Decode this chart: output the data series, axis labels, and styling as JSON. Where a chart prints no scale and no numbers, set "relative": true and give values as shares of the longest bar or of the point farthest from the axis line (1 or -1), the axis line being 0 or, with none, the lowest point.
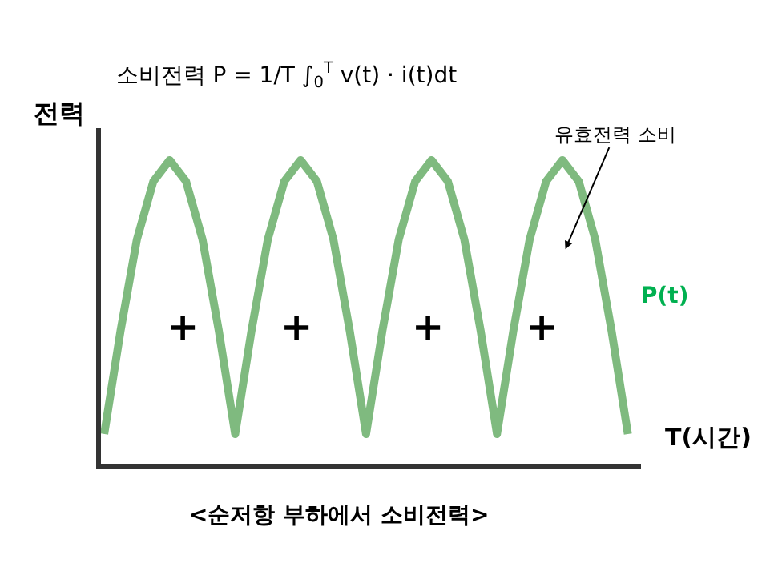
{
  "chart_data": {
    "type": "line",
    "relative": true,
    "title": "소비전력 P = 1/T ∫$_{0}$$^{T}$ v(t) · i(t)dt",
    "xlabel": "T(시간)",
    "ylabel": "전력",
    "categories": [
      null,
      null,
      null,
      null,
      null,
      null,
      null,
      null,
      null,
      null,
      null,
      null,
      null,
      null,
      null,
      null,
      null,
      null,
      null,
      null,
      null,
      null,
      null,
      null,
      null,
      null,
      null,
      null,
      null,
      null,
      null,
      null,
      null
    ],
    "series": [
      {
        "name": "P(t)",
        "color": "#7fba7f",
        "values": [
          0.1,
          0.44,
          0.74,
          0.93,
          1,
          0.93,
          0.74,
          0.44,
          0.1,
          0.44,
          0.74,
          0.93,
          1,
          0.93,
          0.74,
          0.44,
          0.1,
          0.44,
          0.74,
          0.93,
          1,
          0.93,
          0.74,
          0.44,
          0.1,
          0.44,
          0.74,
          0.93,
          1,
          0.93,
          0.74,
          0.44,
          0.1
        ]
      }
    ],
    "annotations": [
      "+",
      "+",
      "+",
      "+",
      "유효전력 소비",
      "<순저항 부하에서 소비전력>"
    ],
    "legend": false,
    "marker": "none",
    "line_style": "solid"
  }
}
